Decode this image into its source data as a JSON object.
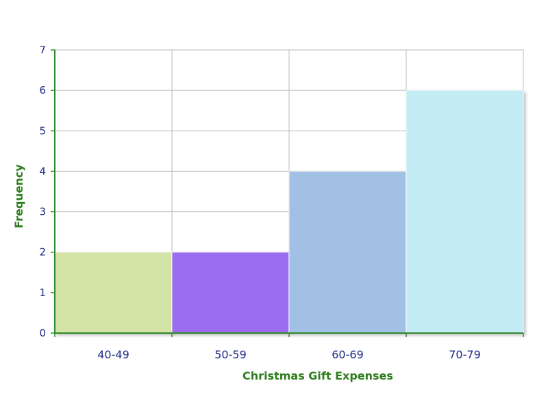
{
  "chart_data": {
    "type": "bar",
    "subtype": "histogram",
    "title": "",
    "xlabel": "Christmas Gift Expenses",
    "ylabel": "Frequency",
    "categories": [
      "40-49",
      "50-59",
      "60-69",
      "70-79"
    ],
    "values": [
      2,
      2,
      4,
      6
    ],
    "ylim": [
      0,
      7
    ],
    "yticks": [
      "0",
      "1",
      "2",
      "3",
      "4",
      "5",
      "6",
      "7"
    ],
    "grid": true,
    "legend": "none",
    "bar_colors": [
      "#d4e3a6",
      "#9b6cf0",
      "#a2bfe4",
      "#c2ebf4"
    ],
    "axis_color": "#2f8a2a",
    "grid_color": "#b8b8b8",
    "tick_label_color": "#1c2a8a",
    "axis_title_color": "#2e7d1e"
  }
}
